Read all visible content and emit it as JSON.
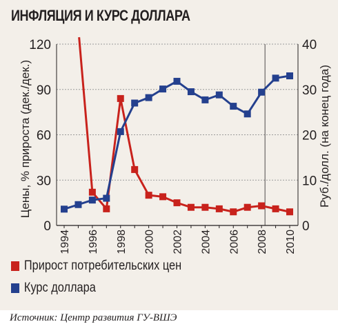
{
  "chart_data": {
    "type": "line",
    "title": "ИНФЛЯЦИЯ И КУРС ДОЛЛАРА",
    "x": [
      1994,
      1995,
      1996,
      1997,
      1998,
      1999,
      2000,
      2001,
      2002,
      2003,
      2004,
      2005,
      2006,
      2007,
      2008,
      2009,
      2010
    ],
    "x_tick_labels": [
      "1994",
      "1996",
      "1998",
      "2000",
      "2002",
      "2004",
      "2006",
      "2008",
      "2010"
    ],
    "ylabel_left": "Цены, % прироста (дек./дек.)",
    "ylabel_right": "Руб./долл. (на конец года)",
    "ylim_left": [
      0,
      120
    ],
    "ylim_right": [
      0,
      40
    ],
    "y_ticks_left": [
      "0",
      "30",
      "60",
      "90",
      "120"
    ],
    "y_ticks_right": [
      "0",
      "10",
      "20",
      "30",
      "40"
    ],
    "grid": "horizontal",
    "series": [
      {
        "name": "Прирост потребительских цен",
        "axis": "left",
        "color": "#c8221c",
        "x": [
          1995,
          1996,
          1997,
          1998,
          1999,
          2000,
          2001,
          2002,
          2003,
          2004,
          2005,
          2006,
          2007,
          2008,
          2009,
          2010
        ],
        "values": [
          131,
          22,
          11,
          84,
          37,
          20,
          19,
          15,
          12,
          12,
          11,
          9,
          12,
          13,
          11,
          9
        ],
        "marker_from_index": 1
      },
      {
        "name": "Курс доллара",
        "axis": "right",
        "color": "#24408e",
        "x": [
          1994,
          1995,
          1996,
          1997,
          1998,
          1999,
          2000,
          2001,
          2002,
          2003,
          2004,
          2005,
          2006,
          2007,
          2008,
          2009,
          2010
        ],
        "values": [
          3.6,
          4.6,
          5.6,
          6.0,
          20.7,
          27.0,
          28.2,
          30.1,
          31.8,
          29.5,
          27.7,
          28.8,
          26.3,
          24.6,
          29.4,
          32.5,
          33.0
        ]
      }
    ]
  },
  "legend": [
    {
      "label": "Прирост потребительских цен",
      "color": "#c8221c"
    },
    {
      "label": "Курс доллара",
      "color": "#24408e"
    }
  ],
  "source": "Источник: Центр развития ГУ-ВШЭ"
}
